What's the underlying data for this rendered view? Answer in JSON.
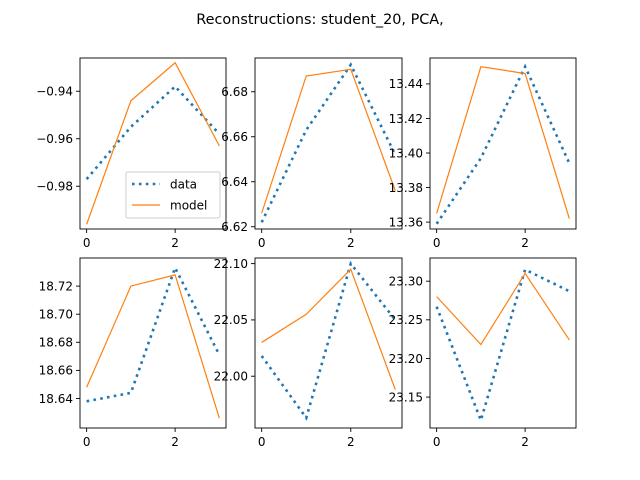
{
  "figure": {
    "title": "Reconstructions: student_20, PCA,"
  },
  "colors": {
    "data": "#1f77b4",
    "model": "#ff7f0e"
  },
  "legend": {
    "placement": "lower-right of first subplot",
    "entries": [
      "data",
      "model"
    ]
  },
  "chart_data": [
    {
      "type": "line",
      "x": [
        0,
        1,
        2,
        3
      ],
      "ylim": [
        -0.998,
        -0.926
      ],
      "xlim": [
        -0.15,
        3.15
      ],
      "yticks": [
        {
          "v": -0.98,
          "label": "−0.98"
        },
        {
          "v": -0.96,
          "label": "−0.96"
        },
        {
          "v": -0.94,
          "label": "−0.94"
        }
      ],
      "xticks": [
        {
          "v": 0,
          "label": "0"
        },
        {
          "v": 2,
          "label": "2"
        }
      ],
      "series": [
        {
          "name": "data",
          "style": "dotted",
          "values": [
            -0.977,
            -0.955,
            -0.938,
            -0.958
          ]
        },
        {
          "name": "model",
          "style": "solid",
          "values": [
            -0.996,
            -0.944,
            -0.928,
            -0.963
          ]
        }
      ],
      "legend": true
    },
    {
      "type": "line",
      "x": [
        0,
        1,
        2,
        3
      ],
      "ylim": [
        6.619,
        6.695
      ],
      "xlim": [
        -0.15,
        3.15
      ],
      "yticks": [
        {
          "v": 6.62,
          "label": "6.62"
        },
        {
          "v": 6.64,
          "label": "6.64"
        },
        {
          "v": 6.66,
          "label": "6.66"
        },
        {
          "v": 6.68,
          "label": "6.68"
        }
      ],
      "xticks": [
        {
          "v": 0,
          "label": "0"
        },
        {
          "v": 2,
          "label": "2"
        }
      ],
      "series": [
        {
          "name": "data",
          "style": "dotted",
          "values": [
            6.622,
            6.663,
            6.692,
            6.652
          ]
        },
        {
          "name": "model",
          "style": "solid",
          "values": [
            6.626,
            6.687,
            6.69,
            6.636
          ]
        }
      ],
      "legend": false
    },
    {
      "type": "line",
      "x": [
        0,
        1,
        2,
        3
      ],
      "ylim": [
        13.356,
        13.455
      ],
      "xlim": [
        -0.15,
        3.15
      ],
      "yticks": [
        {
          "v": 13.36,
          "label": "13.36"
        },
        {
          "v": 13.38,
          "label": "13.38"
        },
        {
          "v": 13.4,
          "label": "13.40"
        },
        {
          "v": 13.42,
          "label": "13.42"
        },
        {
          "v": 13.44,
          "label": "13.44"
        }
      ],
      "xticks": [
        {
          "v": 0,
          "label": "0"
        },
        {
          "v": 2,
          "label": "2"
        }
      ],
      "series": [
        {
          "name": "data",
          "style": "dotted",
          "values": [
            13.359,
            13.397,
            13.45,
            13.394
          ]
        },
        {
          "name": "model",
          "style": "solid",
          "values": [
            13.365,
            13.45,
            13.446,
            13.362
          ]
        }
      ],
      "legend": false
    },
    {
      "type": "line",
      "x": [
        0,
        1,
        2,
        3
      ],
      "ylim": [
        18.619,
        18.74
      ],
      "xlim": [
        -0.15,
        3.15
      ],
      "yticks": [
        {
          "v": 18.64,
          "label": "18.64"
        },
        {
          "v": 18.66,
          "label": "18.66"
        },
        {
          "v": 18.68,
          "label": "18.68"
        },
        {
          "v": 18.7,
          "label": "18.70"
        },
        {
          "v": 18.72,
          "label": "18.72"
        }
      ],
      "xticks": [
        {
          "v": 0,
          "label": "0"
        },
        {
          "v": 2,
          "label": "2"
        }
      ],
      "series": [
        {
          "name": "data",
          "style": "dotted",
          "values": [
            18.638,
            18.644,
            18.733,
            18.671
          ]
        },
        {
          "name": "model",
          "style": "solid",
          "values": [
            18.648,
            18.72,
            18.728,
            18.626
          ]
        }
      ],
      "legend": false
    },
    {
      "type": "line",
      "x": [
        0,
        1,
        2,
        3
      ],
      "ylim": [
        21.954,
        22.105
      ],
      "xlim": [
        -0.15,
        3.15
      ],
      "yticks": [
        {
          "v": 22.0,
          "label": "22.00"
        },
        {
          "v": 22.05,
          "label": "22.05"
        },
        {
          "v": 22.1,
          "label": "22.10"
        }
      ],
      "xticks": [
        {
          "v": 0,
          "label": "0"
        },
        {
          "v": 2,
          "label": "2"
        }
      ],
      "series": [
        {
          "name": "data",
          "style": "dotted",
          "values": [
            22.018,
            21.963,
            22.1,
            22.05
          ]
        },
        {
          "name": "model",
          "style": "solid",
          "values": [
            22.03,
            22.055,
            22.095,
            21.988
          ]
        }
      ],
      "legend": false
    },
    {
      "type": "line",
      "x": [
        0,
        1,
        2,
        3
      ],
      "ylim": [
        23.11,
        23.33
      ],
      "xlim": [
        -0.15,
        3.15
      ],
      "yticks": [
        {
          "v": 23.15,
          "label": "23.15"
        },
        {
          "v": 23.2,
          "label": "23.20"
        },
        {
          "v": 23.25,
          "label": "23.25"
        },
        {
          "v": 23.3,
          "label": "23.30"
        }
      ],
      "xticks": [
        {
          "v": 0,
          "label": "0"
        },
        {
          "v": 2,
          "label": "2"
        }
      ],
      "series": [
        {
          "name": "data",
          "style": "dotted",
          "values": [
            23.267,
            23.12,
            23.315,
            23.287
          ]
        },
        {
          "name": "model",
          "style": "solid",
          "values": [
            23.28,
            23.218,
            23.31,
            23.224
          ]
        }
      ],
      "legend": false
    }
  ]
}
